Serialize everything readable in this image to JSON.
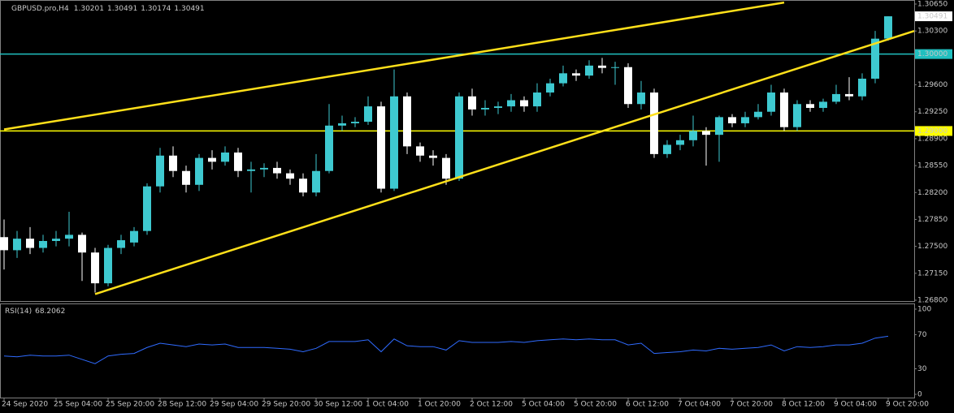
{
  "chart_data": [
    {
      "type": "candlestick",
      "title": "GBPUSD.pro,H4",
      "categories": [
        "24 Sep 2020",
        null,
        null,
        null,
        "25 Sep 04:00",
        null,
        null,
        null,
        "25 Sep 20:00",
        null,
        null,
        null,
        "28 Sep 12:00",
        null,
        null,
        null,
        "29 Sep 04:00",
        null,
        null,
        null,
        "29 Sep 20:00",
        null,
        null,
        null,
        "30 Sep 12:00",
        null,
        null,
        null,
        "1 Oct 04:00",
        null,
        null,
        null,
        "1 Oct 20:00",
        null,
        null,
        null,
        "2 Oct 12:00",
        null,
        null,
        null,
        "5 Oct 04:00",
        null,
        null,
        null,
        "5 Oct 20:00",
        null,
        null,
        null,
        "6 Oct 12:00",
        null,
        null,
        null,
        "7 Oct 04:00",
        null,
        null,
        null,
        "7 Oct 20:00",
        null,
        null,
        null,
        "8 Oct 12:00",
        null,
        null,
        null,
        "9 Oct 04:00",
        null,
        null,
        null,
        "9 Oct 20:00"
      ],
      "open": [
        1.2762,
        1.2745,
        1.276,
        1.2748,
        1.2757,
        1.276,
        1.2765,
        1.2742,
        1.2702,
        1.2748,
        1.2755,
        1.277,
        1.2828,
        1.2868,
        1.2848,
        1.283,
        1.2865,
        1.286,
        1.2872,
        1.2848,
        1.285,
        1.2852,
        1.2845,
        1.2838,
        1.282,
        1.2848,
        1.2907,
        1.291,
        1.2912,
        1.2932,
        1.2825,
        1.2945,
        1.288,
        1.2868,
        1.2865,
        1.2838,
        1.2945,
        1.2928,
        1.293,
        1.2932,
        1.294,
        1.2932,
        1.295,
        1.2962,
        1.2975,
        1.2972,
        1.2985,
        1.2982,
        1.2983,
        1.2935,
        1.295,
        1.287,
        1.2882,
        1.2888,
        1.29,
        1.2895,
        1.2918,
        1.291,
        1.2918,
        1.2925,
        1.295,
        1.2905,
        1.2935,
        1.293,
        1.2938,
        1.2948,
        1.2945,
        1.2968,
        1.30201
      ],
      "high": [
        1.2785,
        1.277,
        1.2775,
        1.2765,
        1.277,
        1.2795,
        1.2768,
        1.2748,
        1.2752,
        1.2765,
        1.2775,
        1.2832,
        1.2878,
        1.288,
        1.2855,
        1.287,
        1.2875,
        1.288,
        1.2878,
        1.286,
        1.2858,
        1.286,
        1.285,
        1.2845,
        1.287,
        1.2935,
        1.292,
        1.2918,
        1.2945,
        1.2938,
        1.298,
        1.295,
        1.2885,
        1.2875,
        1.287,
        1.295,
        1.2955,
        1.294,
        1.2938,
        1.2948,
        1.2945,
        1.2962,
        1.2968,
        1.2985,
        1.298,
        1.2992,
        1.2995,
        1.299,
        1.2988,
        1.2965,
        1.2955,
        1.2888,
        1.2895,
        1.292,
        1.2905,
        1.292,
        1.2922,
        1.2925,
        1.2935,
        1.296,
        1.2955,
        1.294,
        1.294,
        1.2942,
        1.296,
        1.297,
        1.2975,
        1.303,
        1.30491
      ],
      "low": [
        1.272,
        1.2735,
        1.274,
        1.2742,
        1.275,
        1.275,
        1.2705,
        1.269,
        1.2698,
        1.274,
        1.275,
        1.2765,
        1.282,
        1.284,
        1.282,
        1.2822,
        1.285,
        1.2855,
        1.284,
        1.282,
        1.284,
        1.2838,
        1.283,
        1.2815,
        1.2815,
        1.2845,
        1.29,
        1.2905,
        1.2908,
        1.282,
        1.2822,
        1.287,
        1.286,
        1.2855,
        1.283,
        1.2835,
        1.292,
        1.292,
        1.2922,
        1.2925,
        1.2925,
        1.2925,
        1.2945,
        1.2958,
        1.2965,
        1.2968,
        1.2975,
        1.296,
        1.293,
        1.2928,
        1.2865,
        1.2865,
        1.2875,
        1.288,
        1.2855,
        1.286,
        1.2905,
        1.2905,
        1.2915,
        1.292,
        1.29,
        1.29,
        1.2925,
        1.2925,
        1.2935,
        1.294,
        1.294,
        1.2962,
        1.30174
      ],
      "close": [
        1.2745,
        1.276,
        1.2748,
        1.2757,
        1.276,
        1.2765,
        1.2742,
        1.2702,
        1.2748,
        1.2758,
        1.277,
        1.2828,
        1.2868,
        1.2848,
        1.283,
        1.2865,
        1.286,
        1.2872,
        1.2848,
        1.285,
        1.2852,
        1.2845,
        1.2838,
        1.282,
        1.2848,
        1.2907,
        1.291,
        1.2912,
        1.2932,
        1.2825,
        1.2945,
        1.288,
        1.2868,
        1.2865,
        1.2838,
        1.2945,
        1.2928,
        1.293,
        1.2932,
        1.294,
        1.2932,
        1.295,
        1.2962,
        1.2975,
        1.2972,
        1.2985,
        1.2982,
        1.2983,
        1.2935,
        1.295,
        1.287,
        1.2882,
        1.2888,
        1.29,
        1.2895,
        1.2918,
        1.291,
        1.2918,
        1.2925,
        1.295,
        1.2905,
        1.2935,
        1.293,
        1.2938,
        1.2948,
        1.2945,
        1.2968,
        1.302,
        1.30491
      ],
      "up_color": "#3ec9d0",
      "down_color": "#ffffff",
      "ylim": [
        1.268,
        1.3065
      ],
      "yticks": [
        {
          "value": 1.3065,
          "label": "1.30650"
        },
        {
          "value": 1.303,
          "label": "1.30300"
        },
        {
          "value": 1.296,
          "label": "1.29600"
        },
        {
          "value": 1.2925,
          "label": "1.29250"
        },
        {
          "value": 1.289,
          "label": "1.28900"
        },
        {
          "value": 1.2855,
          "label": "1.28550"
        },
        {
          "value": 1.282,
          "label": "1.28200"
        },
        {
          "value": 1.2785,
          "label": "1.27850"
        },
        {
          "value": 1.275,
          "label": "1.27500"
        },
        {
          "value": 1.2715,
          "label": "1.27150"
        },
        {
          "value": 1.268,
          "label": "1.26800"
        }
      ],
      "hlines": [
        {
          "value": 1.3,
          "label": "1.30000",
          "color": "#20c0c0"
        },
        {
          "value": 1.29,
          "label": "1.29000",
          "color": "#ffff00"
        }
      ],
      "trendlines": [
        {
          "color": "#ffe01a",
          "x": [
            0,
            60
          ],
          "y": [
            1.2902,
            1.3067
          ]
        },
        {
          "color": "#ffe01a",
          "x": [
            7,
            70
          ],
          "y": [
            1.2688,
            1.303
          ]
        }
      ]
    },
    {
      "type": "line",
      "title": "RSI(14)",
      "values": [
        45,
        44,
        46,
        45,
        45,
        46,
        41,
        36,
        45,
        47,
        48,
        55,
        60,
        58,
        56,
        59,
        58,
        59,
        55,
        55,
        55,
        54,
        53,
        50,
        54,
        62,
        62,
        62,
        64,
        50,
        65,
        57,
        56,
        56,
        52,
        63,
        61,
        61,
        61,
        62,
        61,
        63,
        64,
        65,
        64,
        65,
        64,
        64,
        58,
        60,
        48,
        49,
        50,
        52,
        51,
        54,
        53,
        54,
        55,
        58,
        51,
        56,
        55,
        56,
        58,
        58,
        60,
        66,
        68.2062
      ],
      "color": "#2f6bff",
      "ylim": [
        0,
        100
      ],
      "yticks": [
        0,
        30,
        70,
        100
      ]
    }
  ]
}
